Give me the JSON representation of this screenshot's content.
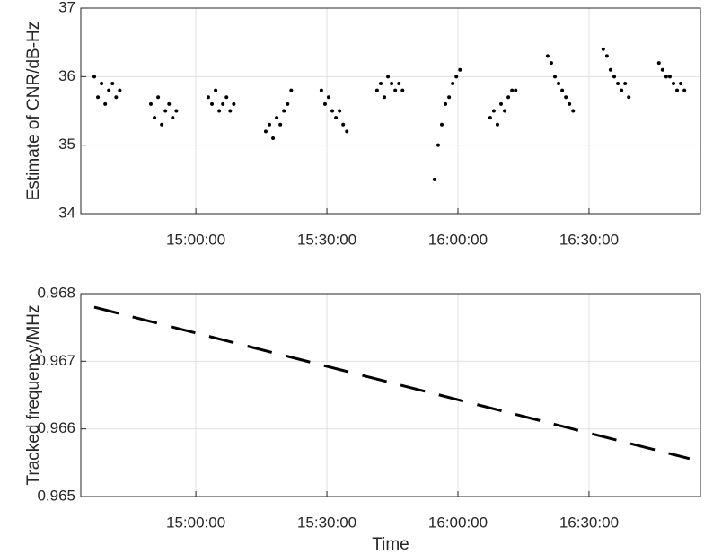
{
  "chart_data": [
    {
      "type": "scatter",
      "ylabel": "Estimate of CNR/dB-Hz",
      "color": "#000000",
      "grid": true,
      "xlim": [
        52420,
        60930
      ],
      "ylim": [
        34,
        37
      ],
      "yticks": [
        34,
        35,
        36,
        37
      ],
      "xticks": [
        {
          "value": 54000,
          "label": "15:00:00"
        },
        {
          "value": 55800,
          "label": "15:30:00"
        },
        {
          "value": 57600,
          "label": "16:00:00"
        },
        {
          "value": 59400,
          "label": "16:30:00"
        }
      ],
      "x": [
        52605,
        52655,
        52705,
        52755,
        52805,
        52855,
        52905,
        52955,
        53382,
        53432,
        53482,
        53532,
        53582,
        53632,
        53682,
        53732,
        54171,
        54221,
        54271,
        54321,
        54371,
        54421,
        54471,
        54521,
        54960,
        55010,
        55060,
        55110,
        55160,
        55210,
        55260,
        55310,
        55724,
        55774,
        55824,
        55874,
        55924,
        55974,
        56024,
        56074,
        56489,
        56539,
        56589,
        56639,
        56689,
        56739,
        56789,
        56839,
        57278,
        57328,
        57378,
        57428,
        57478,
        57528,
        57578,
        57628,
        58042,
        58092,
        58142,
        58192,
        58242,
        58292,
        58342,
        58392,
        58832,
        58882,
        58932,
        58982,
        59032,
        59082,
        59132,
        59182,
        59596,
        59646,
        59696,
        59746,
        59796,
        59846,
        59896,
        59946,
        60360,
        60410,
        60460,
        60510,
        60560,
        60610,
        60660,
        60710
      ],
      "values": [
        36.0,
        35.7,
        35.9,
        35.6,
        35.8,
        35.9,
        35.7,
        35.8,
        35.6,
        35.4,
        35.7,
        35.3,
        35.5,
        35.6,
        35.4,
        35.5,
        35.7,
        35.6,
        35.8,
        35.5,
        35.6,
        35.7,
        35.5,
        35.6,
        35.2,
        35.3,
        35.1,
        35.4,
        35.3,
        35.5,
        35.6,
        35.8,
        35.8,
        35.6,
        35.7,
        35.5,
        35.4,
        35.5,
        35.3,
        35.2,
        35.8,
        35.9,
        35.7,
        36.0,
        35.9,
        35.8,
        35.9,
        35.8,
        34.5,
        35.0,
        35.3,
        35.6,
        35.7,
        35.9,
        36.0,
        36.1,
        35.4,
        35.5,
        35.3,
        35.6,
        35.5,
        35.7,
        35.8,
        35.8,
        36.3,
        36.2,
        36.0,
        35.9,
        35.8,
        35.7,
        35.6,
        35.5,
        36.4,
        36.3,
        36.1,
        36.0,
        35.9,
        35.8,
        35.9,
        35.7,
        36.2,
        36.1,
        36.0,
        36.0,
        35.9,
        35.8,
        35.9,
        35.8
      ]
    },
    {
      "type": "line",
      "ylabel": "Tracked frequency/MHz",
      "xlabel": "Time",
      "color": "#000000",
      "grid": true,
      "line_style": "dashed",
      "xlim": [
        52420,
        60930
      ],
      "ylim": [
        0.965,
        0.968
      ],
      "yticks": [
        0.965,
        0.966,
        0.967,
        0.968
      ],
      "xticks": [
        {
          "value": 54000,
          "label": "15:00:00"
        },
        {
          "value": 55800,
          "label": "15:30:00"
        },
        {
          "value": 57600,
          "label": "16:00:00"
        },
        {
          "value": 59400,
          "label": "16:30:00"
        }
      ],
      "x": [
        52605,
        60780
      ],
      "values": [
        0.9678,
        0.96556
      ]
    }
  ]
}
